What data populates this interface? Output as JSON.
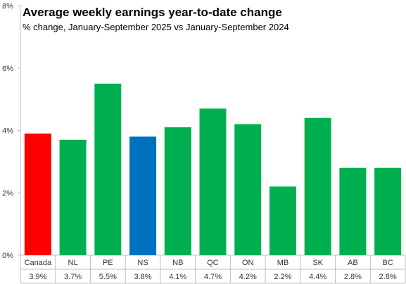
{
  "chart_data": {
    "type": "bar",
    "title": "Average weekly earnings year-to-date change",
    "subtitle": "% change, January-September  2025 vs January-September  2024",
    "xlabel": "",
    "ylabel": "",
    "ylim": [
      0,
      8
    ],
    "yticks": [
      0,
      2,
      4,
      6,
      8
    ],
    "ytick_labels": [
      "0%",
      "2%",
      "4%",
      "6%",
      "8%"
    ],
    "categories": [
      "Canada",
      "NL",
      "PE",
      "NS",
      "NB",
      "QC",
      "ON",
      "MB",
      "SK",
      "AB",
      "BC"
    ],
    "values": [
      3.9,
      3.7,
      5.5,
      3.8,
      4.1,
      4.7,
      4.2,
      2.2,
      4.4,
      2.8,
      2.8
    ],
    "value_labels": [
      "3.9%",
      "3.7%",
      "5.5%",
      "3.8%",
      "4.1%",
      "4.7%",
      "4.2%",
      "2.2%",
      "4.4%",
      "2.8%",
      "2.8%"
    ],
    "bar_colors": [
      "#ff0000",
      "#00b050",
      "#00b050",
      "#0070c0",
      "#00b050",
      "#00b050",
      "#00b050",
      "#00b050",
      "#00b050",
      "#00b050",
      "#00b050"
    ],
    "grid": false,
    "legend": "none"
  }
}
